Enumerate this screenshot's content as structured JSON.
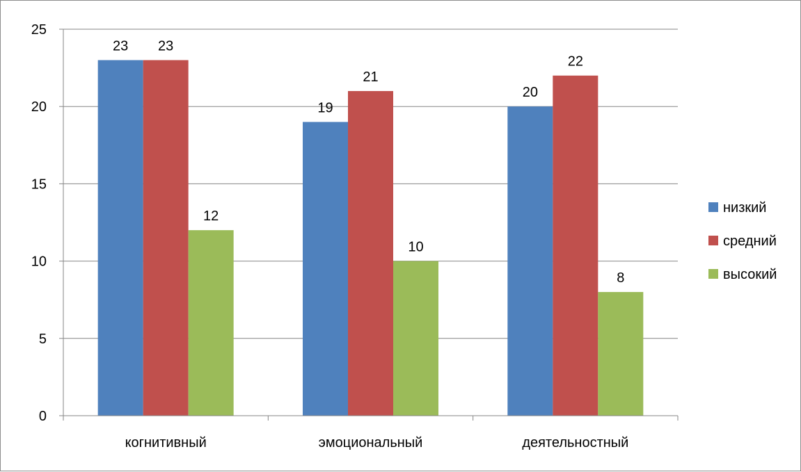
{
  "chart_data": {
    "type": "bar",
    "title": "",
    "xlabel": "",
    "ylabel": "",
    "categories": [
      "когнитивный",
      "эмоциональный",
      "деятельностный"
    ],
    "series": [
      {
        "name": "низкий",
        "color": "#4F81BD",
        "values": [
          23,
          19,
          20
        ]
      },
      {
        "name": "средний",
        "color": "#C0504D",
        "values": [
          23,
          21,
          22
        ]
      },
      {
        "name": "высокий",
        "color": "#9BBB59",
        "values": [
          12,
          10,
          8
        ]
      }
    ],
    "ylim": [
      0,
      25
    ],
    "yticks": [
      "0",
      "5",
      "10",
      "15",
      "20",
      "25"
    ],
    "grid": true,
    "data_labels": true,
    "legend_position": "right"
  }
}
